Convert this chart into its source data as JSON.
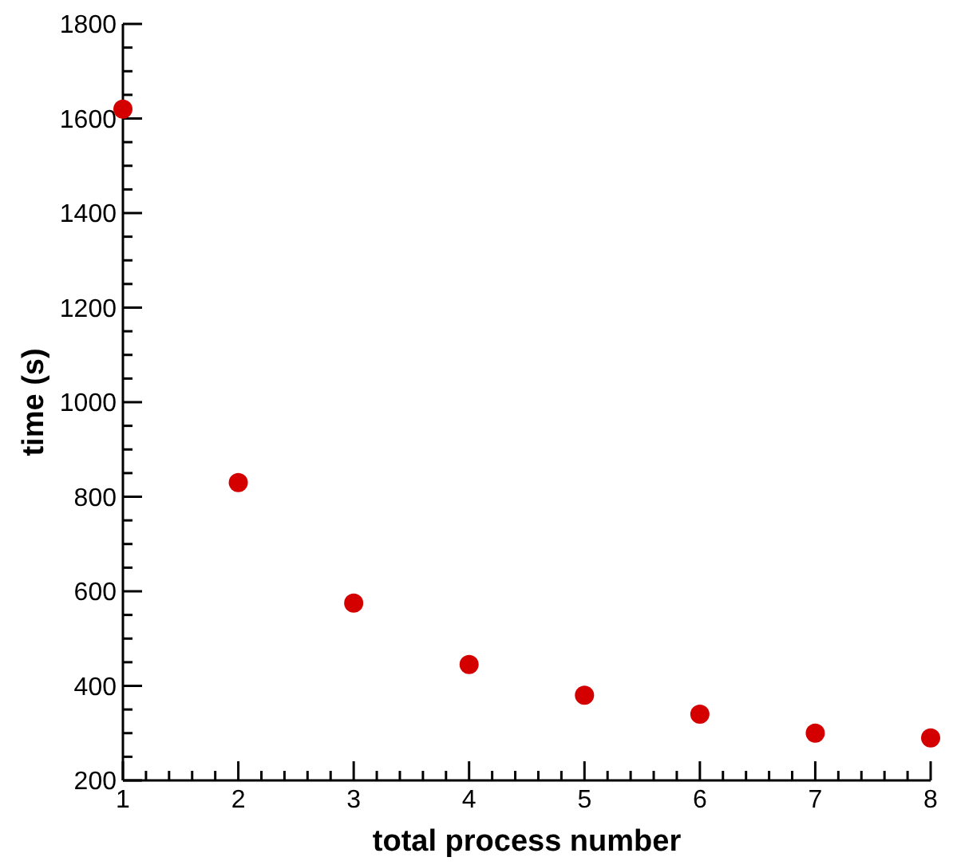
{
  "chart_data": {
    "type": "scatter",
    "xlabel": "total process number",
    "ylabel": "time (s)",
    "x": [
      1,
      2,
      3,
      4,
      5,
      6,
      7,
      8
    ],
    "values": [
      1620,
      830,
      575,
      445,
      380,
      340,
      300,
      290
    ],
    "color": "#d40000",
    "marker": "circle",
    "grid": false,
    "xlim": [
      1,
      8
    ],
    "ylim": [
      200,
      1800
    ],
    "xticks": [
      1,
      {
        "value": 1.2,
        "label": null
      },
      {
        "value": 1.4,
        "label": null
      },
      {
        "value": 1.6,
        "label": null
      },
      {
        "value": 1.8,
        "label": null
      },
      2,
      {
        "value": 2.2,
        "label": null
      },
      {
        "value": 2.4,
        "label": null
      },
      {
        "value": 2.6,
        "label": null
      },
      {
        "value": 2.8,
        "label": null
      },
      3,
      {
        "value": 3.2,
        "label": null
      },
      {
        "value": 3.4,
        "label": null
      },
      {
        "value": 3.6,
        "label": null
      },
      {
        "value": 3.8,
        "label": null
      },
      4,
      {
        "value": 4.2,
        "label": null
      },
      {
        "value": 4.4,
        "label": null
      },
      {
        "value": 4.6,
        "label": null
      },
      {
        "value": 4.8,
        "label": null
      },
      5,
      {
        "value": 5.2,
        "label": null
      },
      {
        "value": 5.4,
        "label": null
      },
      {
        "value": 5.6,
        "label": null
      },
      {
        "value": 5.8,
        "label": null
      },
      6,
      {
        "value": 6.2,
        "label": null
      },
      {
        "value": 6.4,
        "label": null
      },
      {
        "value": 6.6,
        "label": null
      },
      {
        "value": 6.8,
        "label": null
      },
      7,
      {
        "value": 7.2,
        "label": null
      },
      {
        "value": 7.4,
        "label": null
      },
      {
        "value": 7.6,
        "label": null
      },
      {
        "value": 7.8,
        "label": null
      },
      8
    ],
    "yticks": [
      200,
      {
        "value": 250,
        "label": null
      },
      {
        "value": 300,
        "label": null
      },
      {
        "value": 350,
        "label": null
      },
      400,
      {
        "value": 450,
        "label": null
      },
      {
        "value": 500,
        "label": null
      },
      {
        "value": 550,
        "label": null
      },
      600,
      {
        "value": 650,
        "label": null
      },
      {
        "value": 700,
        "label": null
      },
      {
        "value": 750,
        "label": null
      },
      800,
      {
        "value": 850,
        "label": null
      },
      {
        "value": 900,
        "label": null
      },
      {
        "value": 950,
        "label": null
      },
      1000,
      {
        "value": 1050,
        "label": null
      },
      {
        "value": 1100,
        "label": null
      },
      {
        "value": 1150,
        "label": null
      },
      1200,
      {
        "value": 1250,
        "label": null
      },
      {
        "value": 1300,
        "label": null
      },
      {
        "value": 1350,
        "label": null
      },
      1400,
      {
        "value": 1450,
        "label": null
      },
      {
        "value": 1500,
        "label": null
      },
      {
        "value": 1550,
        "label": null
      },
      1600,
      {
        "value": 1650,
        "label": null
      },
      {
        "value": 1700,
        "label": null
      },
      {
        "value": 1750,
        "label": null
      },
      1800
    ]
  }
}
